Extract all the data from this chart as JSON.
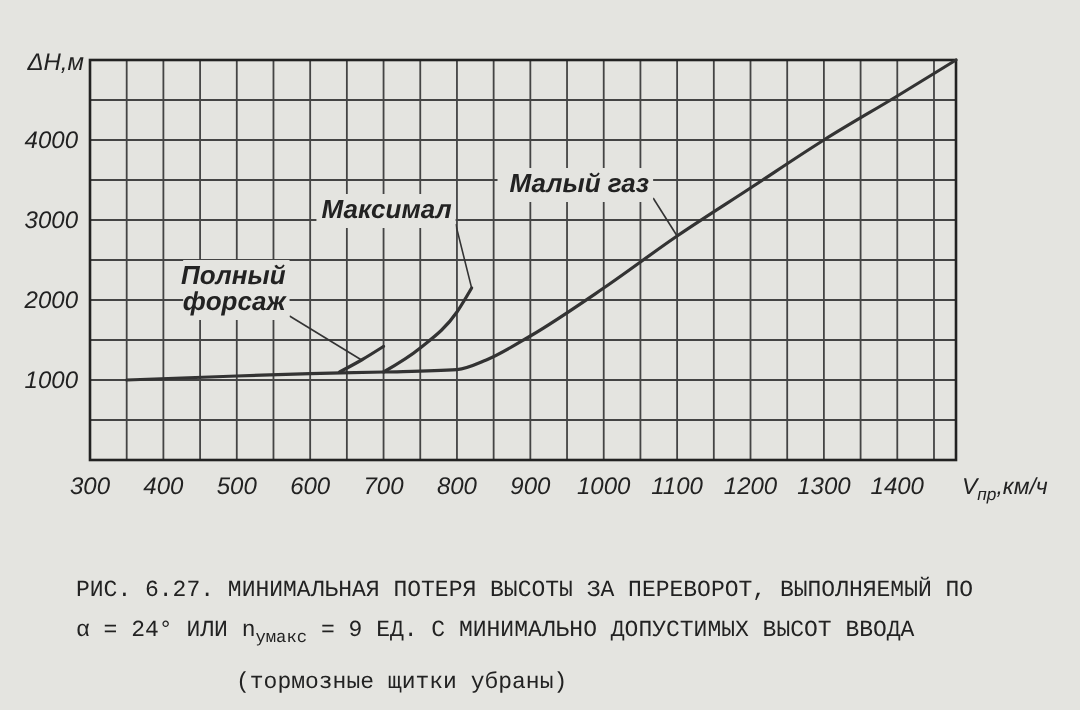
{
  "chart_data": {
    "type": "line",
    "title": "РИС. 6.27. МИНИМАЛЬНАЯ ПОТЕРЯ ВЫСОТЫ ЗА ПЕРЕВОРОТ, ВЫПОЛНЯЕМЫЙ ПО α = 24° ИЛИ n$_{yмакс}$ = 9 ЕД. С МИНИМАЛЬНО ДОПУСТИМЫХ ВЫСОТ ВВОДА",
    "annotations": [
      "(тормозные щитки убраны)"
    ],
    "xlabel": "V$_{пр}$,км/ч",
    "ylabel": "ΔH,м",
    "series": [
      {
        "name": "Малый газ",
        "color": "#333333",
        "x": [
          350,
          500,
          600,
          700,
          800,
          840,
          900,
          1000,
          1100,
          1200,
          1300,
          1400,
          1480
        ],
        "values": [
          1000,
          1050,
          1080,
          1100,
          1130,
          1250,
          1550,
          2150,
          2800,
          3400,
          4000,
          4550,
          5000
        ]
      },
      {
        "name": "Максимал",
        "color": "#333333",
        "x": [
          700,
          750,
          800,
          820
        ],
        "values": [
          1100,
          1400,
          1850,
          2150
        ]
      },
      {
        "name": "Полный форсаж",
        "color": "#333333",
        "x": [
          640,
          670,
          700
        ],
        "values": [
          1100,
          1250,
          1420
        ]
      }
    ],
    "xlim": [
      300,
      1480
    ],
    "ylim": [
      0,
      5000
    ],
    "xticks": [
      300,
      {
        "value": 350,
        "label": null
      },
      400,
      {
        "value": 450,
        "label": null
      },
      500,
      {
        "value": 550,
        "label": null
      },
      600,
      {
        "value": 650,
        "label": null
      },
      700,
      {
        "value": 750,
        "label": null
      },
      800,
      {
        "value": 850,
        "label": null
      },
      900,
      {
        "value": 950,
        "label": null
      },
      1000,
      {
        "value": 1050,
        "label": null
      },
      1100,
      {
        "value": 1150,
        "label": null
      },
      1200,
      {
        "value": 1250,
        "label": null
      },
      1300,
      {
        "value": 1350,
        "label": null
      },
      1400,
      {
        "value": 1450,
        "label": null
      }
    ],
    "yticks": [
      {
        "value": 500,
        "label": null
      },
      1000,
      {
        "value": 1500,
        "label": null
      },
      2000,
      {
        "value": 2500,
        "label": null
      },
      3000,
      {
        "value": 3500,
        "label": null
      },
      4000,
      {
        "value": 4500,
        "label": null
      }
    ],
    "grid": true,
    "marker": "none",
    "line_style": "solid"
  }
}
